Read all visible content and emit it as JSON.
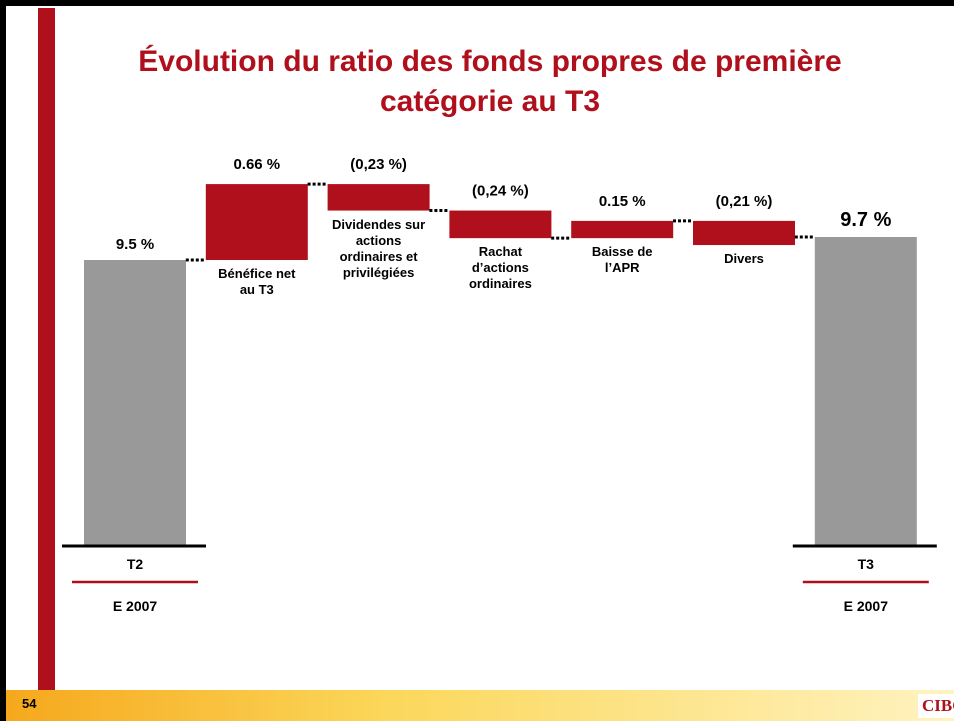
{
  "chart_data": {
    "type": "waterfall",
    "title": "Évolution du ratio des fonds propres de première catégorie au T3",
    "categories": [
      "T2",
      "Bénéfice net au T3",
      "Dividendes sur actions ordinaires et privilégiées",
      "Rachat d’actions ordinaires",
      "Baisse de l’APR",
      "Divers",
      "T3"
    ],
    "measure": [
      "total",
      "relative",
      "relative",
      "relative",
      "relative",
      "relative",
      "total"
    ],
    "values": [
      9.5,
      0.66,
      -0.23,
      -0.24,
      0.15,
      -0.21,
      9.7
    ],
    "value_labels": [
      "9.5 %",
      "0.66 %",
      "(0,23 %)",
      "(0,24 %)",
      "0.15 %",
      "(0,21 %)",
      "9.7 %"
    ],
    "total_color": "#999999",
    "change_color": "#b0101c",
    "period_labels": [
      "E 2007",
      "E 2007"
    ]
  },
  "footer": {
    "page": "54",
    "logo": "CIBC"
  }
}
